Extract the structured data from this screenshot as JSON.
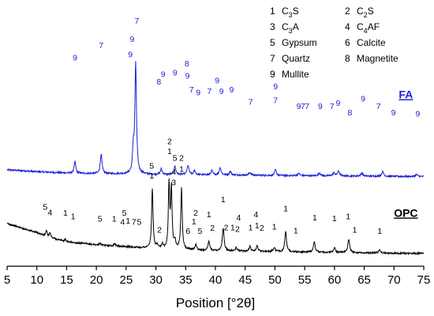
{
  "chart_data": {
    "type": "line",
    "title": "",
    "xlabel": "Position [°2θ]",
    "ylabel": "",
    "xlim": [
      5,
      75
    ],
    "x_ticks": [
      5,
      10,
      15,
      20,
      25,
      30,
      35,
      40,
      45,
      50,
      55,
      60,
      65,
      70,
      75
    ],
    "x_tick_labels": [
      "5",
      "10",
      "15",
      "20",
      "25",
      "30",
      "35",
      "40",
      "45",
      "50",
      "55",
      "60",
      "65",
      "70",
      "75"
    ],
    "y_axis_shown": false,
    "grid": false,
    "legend_position": "top-right",
    "legend": [
      {
        "num": "1",
        "text": "C",
        "sub": "3",
        "text2": "S"
      },
      {
        "num": "2",
        "text": "C",
        "sub": "2",
        "text2": "S"
      },
      {
        "num": "3",
        "text": "C",
        "sub": "3",
        "text2": "A"
      },
      {
        "num": "4",
        "text": "C",
        "sub": "4",
        "text2": "AF"
      },
      {
        "num": "5",
        "text": "Gypsum",
        "sub": "",
        "text2": ""
      },
      {
        "num": "6",
        "text": "Calcite",
        "sub": "",
        "text2": ""
      },
      {
        "num": "7",
        "text": "Quartz",
        "sub": "",
        "text2": ""
      },
      {
        "num": "8",
        "text": "Magnetite",
        "sub": "",
        "text2": ""
      },
      {
        "num": "9",
        "text": "Mullite",
        "sub": "",
        "text2": ""
      }
    ],
    "series": [
      {
        "name": "FA",
        "color": "#1f1fd6",
        "baseline": 1.0,
        "baseline_points": [
          [
            5,
            2.6
          ],
          [
            10,
            2.0
          ],
          [
            15,
            1.55
          ],
          [
            20,
            1.35
          ],
          [
            25,
            1.25
          ],
          [
            30,
            1.1
          ],
          [
            40,
            0.95
          ],
          [
            50,
            0.75
          ],
          [
            60,
            0.6
          ],
          [
            70,
            0.45
          ],
          [
            75,
            0.4
          ]
        ],
        "peaks": [
          {
            "x": 16.4,
            "h": 3.8,
            "w": 0.16
          },
          {
            "x": 20.8,
            "h": 6.5,
            "w": 0.17
          },
          {
            "x": 26.2,
            "h": 7.5,
            "w": 0.14
          },
          {
            "x": 26.6,
            "h": 36.0,
            "w": 0.16
          },
          {
            "x": 30.9,
            "h": 1.8,
            "w": 0.16
          },
          {
            "x": 33.2,
            "h": 2.8,
            "w": 0.16
          },
          {
            "x": 35.4,
            "h": 3.0,
            "w": 0.18
          },
          {
            "x": 36.5,
            "h": 1.4,
            "w": 0.16
          },
          {
            "x": 39.4,
            "h": 1.4,
            "w": 0.16
          },
          {
            "x": 40.8,
            "h": 2.4,
            "w": 0.18
          },
          {
            "x": 42.5,
            "h": 1.2,
            "w": 0.18
          },
          {
            "x": 45.8,
            "h": 1.0,
            "w": 0.18
          },
          {
            "x": 50.1,
            "h": 1.8,
            "w": 0.18
          },
          {
            "x": 54.0,
            "h": 0.7,
            "w": 0.2
          },
          {
            "x": 57.5,
            "h": 0.9,
            "w": 0.2
          },
          {
            "x": 59.9,
            "h": 1.0,
            "w": 0.2
          },
          {
            "x": 60.7,
            "h": 1.6,
            "w": 0.2
          },
          {
            "x": 64.6,
            "h": 1.0,
            "w": 0.2
          },
          {
            "x": 68.1,
            "h": 1.5,
            "w": 0.2
          },
          {
            "x": 73.8,
            "h": 0.6,
            "w": 0.2
          }
        ],
        "peak_labels": [
          {
            "x": 16.4,
            "y": 39.5,
            "t": "9"
          },
          {
            "x": 20.8,
            "y": 43.5,
            "t": "7"
          },
          {
            "x": 26.0,
            "y": 45.5,
            "t": "9"
          },
          {
            "x": 25.7,
            "y": 40.5,
            "t": "9"
          },
          {
            "x": 26.8,
            "y": 51.5,
            "t": "7"
          },
          {
            "x": 30.5,
            "y": 31.5,
            "t": "8"
          },
          {
            "x": 31.2,
            "y": 34.0,
            "t": "9"
          },
          {
            "x": 33.2,
            "y": 34.5,
            "t": "9"
          },
          {
            "x": 35.2,
            "y": 37.5,
            "t": "8"
          },
          {
            "x": 35.3,
            "y": 33.5,
            "t": "9"
          },
          {
            "x": 36.0,
            "y": 29.0,
            "t": "7"
          },
          {
            "x": 37.1,
            "y": 28.0,
            "t": "9"
          },
          {
            "x": 39.0,
            "y": 28.5,
            "t": "7"
          },
          {
            "x": 40.3,
            "y": 32.0,
            "t": "9"
          },
          {
            "x": 41.0,
            "y": 28.5,
            "t": "9"
          },
          {
            "x": 42.7,
            "y": 29.0,
            "t": "9"
          },
          {
            "x": 45.9,
            "y": 25.0,
            "t": "7"
          },
          {
            "x": 50.1,
            "y": 30.0,
            "t": "9"
          },
          {
            "x": 50.1,
            "y": 25.5,
            "t": "7"
          },
          {
            "x": 54.0,
            "y": 23.5,
            "t": "9"
          },
          {
            "x": 54.7,
            "y": 23.5,
            "t": "7"
          },
          {
            "x": 55.4,
            "y": 23.5,
            "t": "7"
          },
          {
            "x": 57.6,
            "y": 23.5,
            "t": "9"
          },
          {
            "x": 59.6,
            "y": 23.5,
            "t": "7"
          },
          {
            "x": 60.6,
            "y": 24.5,
            "t": "9"
          },
          {
            "x": 62.6,
            "y": 21.5,
            "t": "8"
          },
          {
            "x": 64.8,
            "y": 26.0,
            "t": "9"
          },
          {
            "x": 67.4,
            "y": 23.5,
            "t": "7"
          },
          {
            "x": 69.9,
            "y": 21.5,
            "t": "9"
          },
          {
            "x": 74.0,
            "y": 21.0,
            "t": "9"
          }
        ],
        "label": "FA",
        "label_x": 72.0,
        "label_y": 27.0
      },
      {
        "name": "OPC",
        "color": "#000000",
        "baseline": 0.0,
        "baseline_points": [
          [
            5,
            -14.0
          ],
          [
            8,
            -15.8
          ],
          [
            10,
            -17.0
          ],
          [
            12,
            -18.5
          ],
          [
            15,
            -20.0
          ],
          [
            20,
            -21.0
          ],
          [
            25,
            -21.6
          ],
          [
            30,
            -22.2
          ],
          [
            35,
            -22.6
          ],
          [
            40,
            -22.9
          ],
          [
            50,
            -23.2
          ],
          [
            60,
            -23.5
          ],
          [
            70,
            -23.7
          ],
          [
            75,
            -23.8
          ]
        ],
        "peaks": [
          {
            "x": 11.6,
            "h": 1.8,
            "w": 0.15
          },
          {
            "x": 12.2,
            "h": 1.5,
            "w": 0.15
          },
          {
            "x": 14.8,
            "h": 0.7,
            "w": 0.15
          },
          {
            "x": 20.6,
            "h": 0.6,
            "w": 0.15
          },
          {
            "x": 23.1,
            "h": 0.9,
            "w": 0.15
          },
          {
            "x": 29.4,
            "h": 19.5,
            "w": 0.14
          },
          {
            "x": 30.2,
            "h": 1.0,
            "w": 0.15
          },
          {
            "x": 31.1,
            "h": 1.3,
            "w": 0.15
          },
          {
            "x": 32.2,
            "h": 21.0,
            "w": 0.13
          },
          {
            "x": 32.6,
            "h": 19.5,
            "w": 0.14
          },
          {
            "x": 33.2,
            "h": 2.5,
            "w": 0.15
          },
          {
            "x": 34.3,
            "h": 20.0,
            "w": 0.14
          },
          {
            "x": 36.7,
            "h": 1.8,
            "w": 0.16
          },
          {
            "x": 38.9,
            "h": 2.8,
            "w": 0.17
          },
          {
            "x": 41.3,
            "h": 7.5,
            "w": 0.17
          },
          {
            "x": 43.5,
            "h": 1.0,
            "w": 0.17
          },
          {
            "x": 45.8,
            "h": 1.5,
            "w": 0.17
          },
          {
            "x": 47.0,
            "h": 1.8,
            "w": 0.17
          },
          {
            "x": 49.9,
            "h": 1.3,
            "w": 0.18
          },
          {
            "x": 51.8,
            "h": 6.5,
            "w": 0.17
          },
          {
            "x": 56.6,
            "h": 3.5,
            "w": 0.17
          },
          {
            "x": 60.0,
            "h": 1.5,
            "w": 0.18
          },
          {
            "x": 62.4,
            "h": 4.5,
            "w": 0.18
          },
          {
            "x": 67.6,
            "h": 0.9,
            "w": 0.2
          }
        ],
        "peak_labels": [
          {
            "x": 11.4,
            "y": -9.5,
            "t": "5"
          },
          {
            "x": 12.2,
            "y": -11.3,
            "t": "4"
          },
          {
            "x": 14.8,
            "y": -11.4,
            "t": "1"
          },
          {
            "x": 16.1,
            "y": -12.6,
            "t": "1"
          },
          {
            "x": 20.6,
            "y": -13.4,
            "t": "5"
          },
          {
            "x": 23.0,
            "y": -13.4,
            "t": "1"
          },
          {
            "x": 24.7,
            "y": -11.4,
            "t": "5"
          },
          {
            "x": 24.4,
            "y": -14.4,
            "t": "4"
          },
          {
            "x": 25.3,
            "y": -14.0,
            "t": "1"
          },
          {
            "x": 26.3,
            "y": -14.4,
            "t": "7"
          },
          {
            "x": 27.2,
            "y": -14.4,
            "t": "5"
          },
          {
            "x": 29.3,
            "y": 4.0,
            "t": "5"
          },
          {
            "x": 29.3,
            "y": 0.7,
            "t": "1"
          },
          {
            "x": 30.6,
            "y": -17.0,
            "t": "2"
          },
          {
            "x": 32.3,
            "y": 12.0,
            "t": "2"
          },
          {
            "x": 32.3,
            "y": 8.8,
            "t": "1"
          },
          {
            "x": 33.2,
            "y": 6.5,
            "t": "5"
          },
          {
            "x": 33.0,
            "y": 2.0,
            "t": "4"
          },
          {
            "x": 33.0,
            "y": -1.5,
            "t": "3"
          },
          {
            "x": 34.3,
            "y": 6.5,
            "t": "2"
          },
          {
            "x": 34.3,
            "y": 3.0,
            "t": "1"
          },
          {
            "x": 35.4,
            "y": -17.4,
            "t": "6"
          },
          {
            "x": 36.4,
            "y": -14.3,
            "t": "1"
          },
          {
            "x": 36.7,
            "y": -11.4,
            "t": "2"
          },
          {
            "x": 37.4,
            "y": -17.4,
            "t": "5"
          },
          {
            "x": 38.9,
            "y": -12.0,
            "t": "1"
          },
          {
            "x": 39.5,
            "y": -16.3,
            "t": "2"
          },
          {
            "x": 41.3,
            "y": -7.0,
            "t": "1"
          },
          {
            "x": 41.8,
            "y": -16.2,
            "t": "2"
          },
          {
            "x": 42.9,
            "y": -16.2,
            "t": "1"
          },
          {
            "x": 43.7,
            "y": -16.8,
            "t": "2"
          },
          {
            "x": 43.9,
            "y": -13.0,
            "t": "4"
          },
          {
            "x": 45.9,
            "y": -16.2,
            "t": "1"
          },
          {
            "x": 46.8,
            "y": -12.0,
            "t": "4"
          },
          {
            "x": 47.0,
            "y": -15.6,
            "t": "1"
          },
          {
            "x": 47.8,
            "y": -16.3,
            "t": "2"
          },
          {
            "x": 49.9,
            "y": -16.0,
            "t": "1"
          },
          {
            "x": 51.8,
            "y": -10.0,
            "t": "1"
          },
          {
            "x": 53.5,
            "y": -17.2,
            "t": "1"
          },
          {
            "x": 56.7,
            "y": -13.0,
            "t": "1"
          },
          {
            "x": 60.0,
            "y": -13.3,
            "t": "1"
          },
          {
            "x": 62.3,
            "y": -12.6,
            "t": "1"
          },
          {
            "x": 63.4,
            "y": -17.0,
            "t": "1"
          },
          {
            "x": 67.6,
            "y": -17.4,
            "t": "1"
          }
        ],
        "label": "OPC",
        "label_x": 72.0,
        "label_y": -11.8
      }
    ]
  }
}
